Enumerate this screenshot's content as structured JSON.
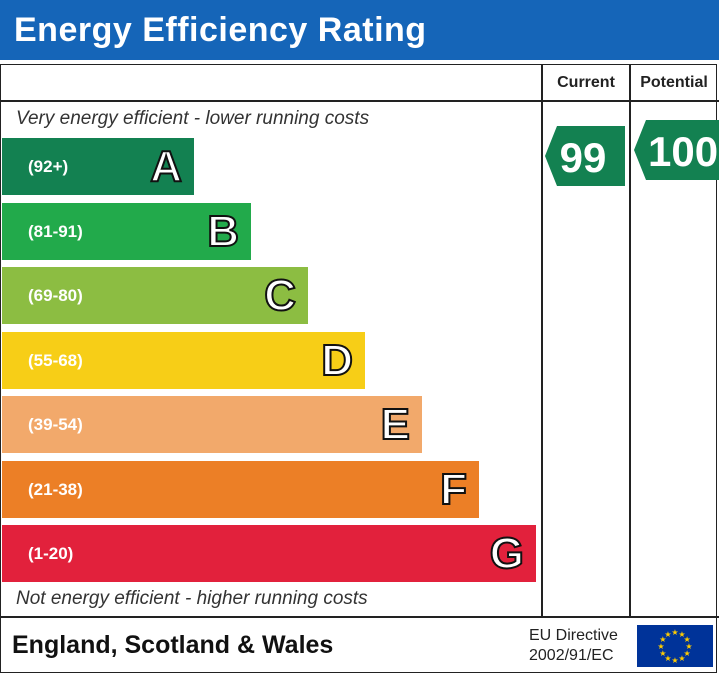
{
  "header": {
    "title": "Energy Efficiency Rating"
  },
  "columns": {
    "current": "Current",
    "potential": "Potential"
  },
  "captions": {
    "top": "Very energy efficient - lower running costs",
    "bottom": "Not energy efficient - higher running costs"
  },
  "footer": {
    "region": "England, Scotland & Wales",
    "directive_line1": "EU Directive",
    "directive_line2": "2002/91/EC",
    "flag_icon": "eu-flag-icon"
  },
  "chart_data": {
    "type": "bar",
    "categories": [
      "A",
      "B",
      "C",
      "D",
      "E",
      "F",
      "G"
    ],
    "ranges": [
      "(92+)",
      "(81-91)",
      "(69-80)",
      "(55-68)",
      "(39-54)",
      "(21-38)",
      "(1-20)"
    ],
    "colors": [
      "#138151",
      "#22aa4b",
      "#8cbd42",
      "#f7ce17",
      "#f2a96b",
      "#ec7f26",
      "#e2213c"
    ],
    "current": {
      "value": 99,
      "band": "A",
      "color": "#138151"
    },
    "potential": {
      "value": 100,
      "band": "A",
      "color": "#138151"
    }
  }
}
